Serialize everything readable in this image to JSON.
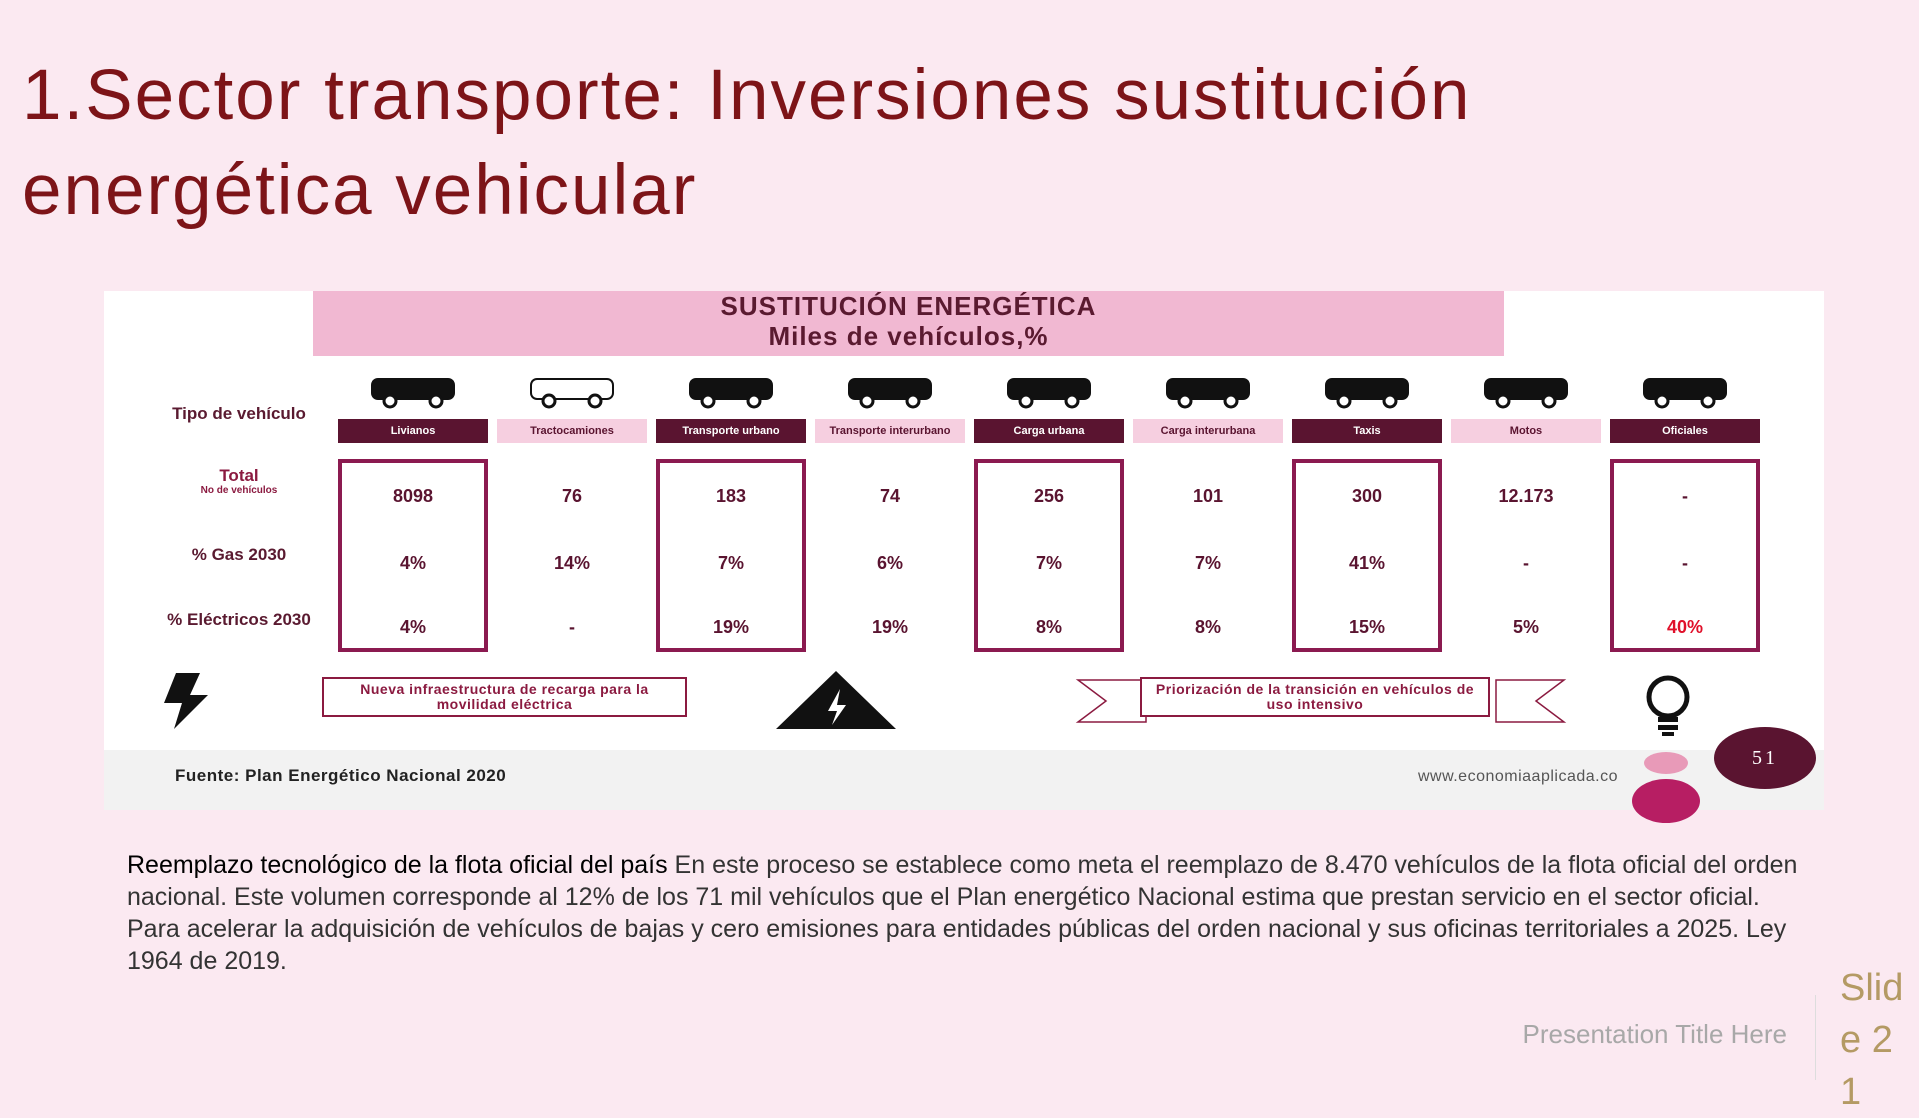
{
  "slide": {
    "title": "1.Sector transporte: Inversiones sustitución energética vehicular",
    "infographic": {
      "heading": [
        "SUSTITUCIÓN ENERGÉTICA",
        "Miles de vehículos,%"
      ],
      "row_labels": {
        "type": "Tipo de vehículo",
        "total": "Total",
        "total_sub": "No de vehículos",
        "gas": "% Gas 2030",
        "electric": "% Eléctricos 2030"
      },
      "vehicles": [
        {
          "name": "Livianos",
          "total": "8098",
          "gas": "4%",
          "electric": "4%"
        },
        {
          "name": "Tractocamiones",
          "total": "76",
          "gas": "14%",
          "electric": "-"
        },
        {
          "name": "Transporte urbano",
          "total": "183",
          "gas": "7%",
          "electric": "19%"
        },
        {
          "name": "Transporte interurbano",
          "total": "74",
          "gas": "6%",
          "electric": "19%"
        },
        {
          "name": "Carga urbana",
          "total": "256",
          "gas": "7%",
          "electric": "8%"
        },
        {
          "name": "Carga interurbana",
          "total": "101",
          "gas": "7%",
          "electric": "8%"
        },
        {
          "name": "Taxis",
          "total": "300",
          "gas": "41%",
          "electric": "15%"
        },
        {
          "name": "Motos",
          "total": "12.173",
          "gas": "-",
          "electric": "5%"
        },
        {
          "name": "Oficiales",
          "total": "-",
          "gas": "-",
          "electric": "40%"
        }
      ],
      "banners": [
        "Nueva infraestructura de recarga para la movilidad eléctrica",
        "Priorización de la transición en vehículos de uso intensivo"
      ],
      "source": "Fuente: Plan Energético Nacional 2020",
      "website": "www.economiaaplicada.co",
      "page_number": "51"
    },
    "paragraph": {
      "lead": "Reemplazo tecnológico de la flota oficial del país",
      "body": " En este proceso se establece como meta el reemplazo de 8.470 vehículos de la flota oficial del orden nacional. Este volumen corresponde al 12% de los 71 mil vehículos que el Plan energético Nacional estima que prestan servicio en el sector oficial. Para acelerar la adquisición de vehículos de bajas y cero emisiones para entidades públicas del orden nacional y sus oficinas territoriales a 2025. Ley 1964 de 2019."
    },
    "footer": "Presentation Title Here",
    "slide_number": "Slide 21"
  }
}
